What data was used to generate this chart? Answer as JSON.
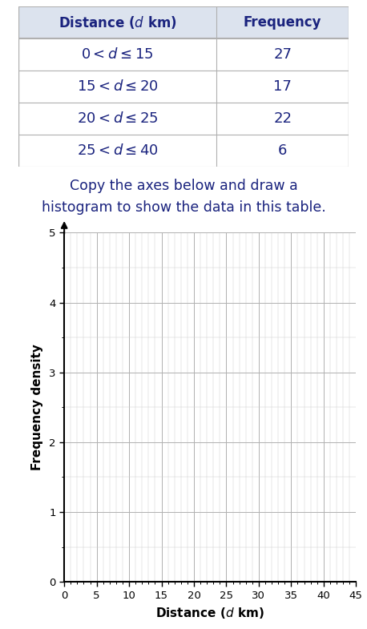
{
  "table": {
    "col1_header": "Distance ($d$ km)",
    "col2_header": "Frequency",
    "rows": [
      {
        "interval": "$0 < d \\leq 15$",
        "frequency": "27"
      },
      {
        "interval": "$15 < d \\leq 20$",
        "frequency": "17"
      },
      {
        "interval": "$20 < d \\leq 25$",
        "frequency": "22"
      },
      {
        "interval": "$25 < d \\leq 40$",
        "frequency": "6"
      }
    ]
  },
  "instruction_text": "Copy the axes below and draw a\nhistogram to show the data in this table.",
  "plot": {
    "xlabel": "Distance ($d$ km)",
    "ylabel": "Frequency density",
    "xlim": [
      0,
      45
    ],
    "ylim": [
      0,
      5
    ],
    "xticks": [
      0,
      5,
      10,
      15,
      20,
      25,
      30,
      35,
      40,
      45
    ],
    "yticks": [
      0,
      1,
      2,
      3,
      4,
      5
    ],
    "major_grid_color": "#b0b0b0",
    "minor_grid_color": "#d0d0d0",
    "text_color": "#1a237e",
    "header_bg_color": "#dce3ee",
    "table_line_color": "#b0b0b0",
    "axis_label_color": "#000000",
    "tick_label_color": "#000000",
    "background_color": "#ffffff"
  }
}
